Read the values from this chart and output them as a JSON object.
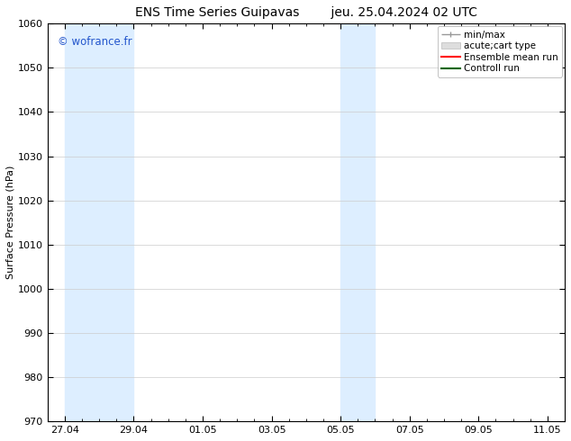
{
  "title_left": "ENS Time Series Guipavas",
  "title_right": "jeu. 25.04.2024 02 UTC",
  "ylabel": "Surface Pressure (hPa)",
  "ylim": [
    970,
    1060
  ],
  "yticks": [
    970,
    980,
    990,
    1000,
    1010,
    1020,
    1030,
    1040,
    1050,
    1060
  ],
  "xtick_labels": [
    "27.04",
    "29.04",
    "01.05",
    "03.05",
    "05.05",
    "07.05",
    "09.05",
    "11.05"
  ],
  "shaded_color": "#ddeeff",
  "watermark": "© wofrance.fr",
  "watermark_color": "#2255cc",
  "bg_color": "#ffffff",
  "grid_color": "#cccccc",
  "title_fontsize": 10,
  "axis_fontsize": 8,
  "tick_fontsize": 8,
  "legend_fontsize": 7.5,
  "spine_color": "#000000"
}
